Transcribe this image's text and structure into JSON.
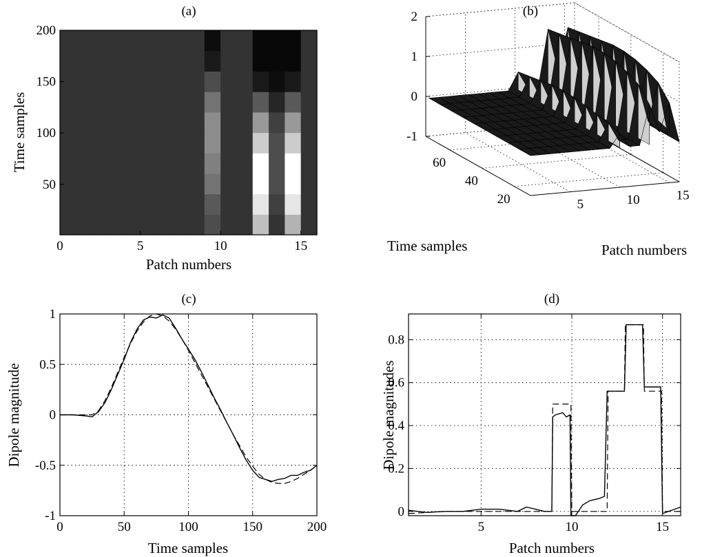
{
  "figure": {
    "background": "#ffffff",
    "ink": "#000000"
  },
  "chart_data": [
    {
      "id": "a",
      "type": "heatmap",
      "title": "(a)",
      "xlabel": "Patch numbers",
      "ylabel": "Time samples",
      "xlim": [
        0,
        16
      ],
      "ylim": [
        1,
        200
      ],
      "xticks": [
        "0",
        "5",
        "10",
        "15"
      ],
      "xtick_values": [
        0,
        5,
        10,
        15
      ],
      "yticks": [
        "50",
        "100",
        "150",
        "200"
      ],
      "ytick_values": [
        50,
        100,
        150,
        200
      ],
      "colormap": "gray",
      "x": [
        0.5,
        1.5,
        2.5,
        3.5,
        4.5,
        5.5,
        6.5,
        7.5,
        8.5,
        9.5,
        10.5,
        11.5,
        12.5,
        13.5,
        14.5,
        15.5
      ],
      "y": [
        10,
        30,
        50,
        70,
        90,
        110,
        130,
        150,
        170,
        190
      ],
      "values": [
        [
          0.2,
          0.2,
          0.2,
          0.2,
          0.2,
          0.2,
          0.2,
          0.2,
          0.2,
          0.3,
          0.2,
          0.2,
          0.75,
          0.2,
          0.7,
          0.2
        ],
        [
          0.2,
          0.2,
          0.2,
          0.2,
          0.2,
          0.2,
          0.2,
          0.2,
          0.2,
          0.35,
          0.2,
          0.2,
          0.9,
          0.25,
          0.9,
          0.2
        ],
        [
          0.2,
          0.2,
          0.2,
          0.2,
          0.2,
          0.2,
          0.2,
          0.2,
          0.2,
          0.45,
          0.2,
          0.2,
          1.0,
          0.3,
          1.0,
          0.2
        ],
        [
          0.2,
          0.2,
          0.2,
          0.2,
          0.2,
          0.2,
          0.2,
          0.2,
          0.2,
          0.5,
          0.2,
          0.2,
          1.0,
          0.3,
          1.0,
          0.2
        ],
        [
          0.2,
          0.2,
          0.2,
          0.2,
          0.2,
          0.2,
          0.2,
          0.2,
          0.2,
          0.55,
          0.2,
          0.2,
          0.8,
          0.3,
          0.8,
          0.2
        ],
        [
          0.2,
          0.2,
          0.2,
          0.2,
          0.2,
          0.2,
          0.2,
          0.2,
          0.2,
          0.55,
          0.2,
          0.2,
          0.6,
          0.25,
          0.6,
          0.2
        ],
        [
          0.2,
          0.2,
          0.2,
          0.2,
          0.2,
          0.2,
          0.2,
          0.2,
          0.2,
          0.45,
          0.2,
          0.2,
          0.35,
          0.15,
          0.35,
          0.2
        ],
        [
          0.2,
          0.2,
          0.2,
          0.2,
          0.2,
          0.2,
          0.2,
          0.2,
          0.2,
          0.3,
          0.2,
          0.2,
          0.1,
          0.05,
          0.1,
          0.2
        ],
        [
          0.2,
          0.2,
          0.2,
          0.2,
          0.2,
          0.2,
          0.2,
          0.2,
          0.2,
          0.1,
          0.2,
          0.2,
          0.03,
          0.03,
          0.03,
          0.2
        ],
        [
          0.2,
          0.2,
          0.2,
          0.2,
          0.2,
          0.2,
          0.2,
          0.2,
          0.2,
          0.05,
          0.2,
          0.2,
          0.03,
          0.03,
          0.03,
          0.2
        ]
      ]
    },
    {
      "id": "b",
      "type": "surface",
      "title": "(b)",
      "xlabel": "Time samples",
      "ylabel": "Patch numbers",
      "xticks": [
        "20",
        "40",
        "60"
      ],
      "xtick_values": [
        20,
        40,
        60
      ],
      "yticks": [
        "5",
        "10",
        "15"
      ],
      "ytick_values": [
        5,
        10,
        15
      ],
      "zticks": [
        "-1",
        "0",
        "1",
        "2"
      ],
      "ztick_values": [
        -1,
        0,
        1,
        2
      ],
      "xlim": [
        10,
        75
      ],
      "ylim": [
        1,
        16
      ],
      "zlim": [
        -1,
        2
      ],
      "grid": true,
      "patches": [
        1,
        2,
        3,
        4,
        5,
        6,
        7,
        8,
        9,
        10,
        11,
        12,
        13,
        14,
        15,
        16
      ],
      "time": [
        10,
        17,
        24,
        31,
        38,
        45,
        52,
        59,
        66,
        73
      ],
      "values": [
        [
          0,
          0,
          0,
          0,
          0,
          0,
          0,
          0,
          0,
          0.35,
          0,
          0,
          1.0,
          0.3,
          1.0,
          0
        ],
        [
          0,
          0,
          0,
          0,
          0,
          0,
          0,
          0,
          0,
          0.45,
          0,
          0,
          1.35,
          0.4,
          1.35,
          0
        ],
        [
          0,
          0,
          0,
          0,
          0,
          0,
          0,
          0,
          0,
          0.5,
          0,
          0,
          1.5,
          0.5,
          1.5,
          0
        ],
        [
          0,
          0,
          0,
          0,
          0,
          0,
          0,
          0,
          0,
          0.55,
          0,
          0,
          1.6,
          0.5,
          1.6,
          0
        ],
        [
          0,
          0,
          0,
          0,
          0,
          0,
          0,
          0,
          0,
          0.6,
          0,
          0,
          1.65,
          0.5,
          1.65,
          0
        ],
        [
          0,
          0,
          0,
          0,
          0,
          0,
          0,
          0,
          0,
          0.62,
          0,
          0,
          1.65,
          0.5,
          1.65,
          0
        ],
        [
          0,
          0,
          0,
          0,
          0,
          0,
          0,
          0,
          0,
          0.6,
          0,
          0,
          1.6,
          0.5,
          1.6,
          0
        ],
        [
          0,
          0,
          0,
          0,
          0,
          0,
          0,
          0,
          0,
          0.55,
          0,
          0,
          1.55,
          0.5,
          1.55,
          0
        ],
        [
          0,
          0,
          0,
          0,
          0,
          0,
          0,
          0,
          0,
          0.5,
          0,
          0,
          1.5,
          0.45,
          1.5,
          0
        ],
        [
          0,
          0,
          0,
          0,
          0,
          0,
          0,
          0,
          0,
          0.45,
          0,
          0,
          1.45,
          0.4,
          1.45,
          0
        ]
      ]
    },
    {
      "id": "c",
      "type": "line",
      "title": "(c)",
      "xlabel": "Time samples",
      "ylabel": "Dipole magnitude",
      "xlim": [
        0,
        200
      ],
      "ylim": [
        -1,
        1
      ],
      "xticks": [
        "0",
        "50",
        "100",
        "150",
        "200"
      ],
      "xtick_values": [
        0,
        50,
        100,
        150,
        200
      ],
      "yticks": [
        "-1",
        "-0.5",
        "0",
        "0.5",
        "1"
      ],
      "ytick_values": [
        -1,
        -0.5,
        0,
        0.5,
        1
      ],
      "grid": true,
      "series": [
        {
          "style": "solid",
          "x": [
            0,
            10,
            20,
            25,
            30,
            35,
            40,
            45,
            50,
            55,
            60,
            65,
            70,
            75,
            80,
            85,
            90,
            95,
            100,
            105,
            110,
            115,
            120,
            125,
            130,
            135,
            140,
            145,
            150,
            155,
            160,
            165,
            170,
            175,
            180,
            185,
            190,
            195,
            200
          ],
          "y": [
            0,
            0,
            -0.01,
            -0.02,
            0.03,
            0.12,
            0.25,
            0.4,
            0.55,
            0.72,
            0.85,
            0.94,
            0.97,
            0.96,
            0.99,
            0.96,
            0.86,
            0.75,
            0.65,
            0.55,
            0.43,
            0.3,
            0.17,
            0.05,
            -0.08,
            -0.2,
            -0.33,
            -0.45,
            -0.55,
            -0.62,
            -0.64,
            -0.66,
            -0.64,
            -0.63,
            -0.6,
            -0.6,
            -0.57,
            -0.55,
            -0.5
          ]
        },
        {
          "style": "dashed",
          "x": [
            0,
            20,
            25,
            30,
            35,
            40,
            45,
            50,
            55,
            60,
            65,
            70,
            75,
            80,
            85,
            90,
            95,
            100,
            105,
            110,
            115,
            120,
            125,
            130,
            135,
            140,
            145,
            150,
            155,
            160,
            165,
            170,
            175,
            180,
            185,
            190,
            195,
            200
          ],
          "y": [
            0,
            0,
            0,
            0.04,
            0.14,
            0.27,
            0.42,
            0.57,
            0.71,
            0.83,
            0.92,
            0.98,
            1.0,
            0.98,
            0.93,
            0.85,
            0.75,
            0.64,
            0.52,
            0.4,
            0.28,
            0.16,
            0.04,
            -0.08,
            -0.2,
            -0.31,
            -0.42,
            -0.51,
            -0.59,
            -0.64,
            -0.67,
            -0.68,
            -0.68,
            -0.66,
            -0.63,
            -0.59,
            -0.55,
            -0.5
          ]
        }
      ]
    },
    {
      "id": "d",
      "type": "line",
      "title": "(d)",
      "xlabel": "Patch numbers",
      "ylabel": "Dipole magnitudes",
      "xlim": [
        1,
        16
      ],
      "ylim": [
        -0.02,
        0.92
      ],
      "xticks": [
        "5",
        "10",
        "15"
      ],
      "xtick_values": [
        5,
        10,
        15
      ],
      "yticks": [
        "0",
        "0.2",
        "0.4",
        "0.6",
        "0.8"
      ],
      "ytick_values": [
        0,
        0.2,
        0.4,
        0.6,
        0.8
      ],
      "grid": true,
      "series": [
        {
          "style": "solid",
          "x": [
            1,
            2,
            3,
            4,
            5,
            6,
            7,
            7.5,
            8,
            8.5,
            8.9,
            8.95,
            9.1,
            9.5,
            9.7,
            9.9,
            9.95,
            10.2,
            10.6,
            11,
            11.5,
            11.8,
            11.95,
            12.1,
            12.5,
            12.9,
            13.0,
            13.5,
            13.9,
            14.0,
            14.3,
            14.9,
            15.0,
            16
          ],
          "y": [
            0.005,
            -0.005,
            0.0,
            0.0,
            0.01,
            0.01,
            0.0,
            0.02,
            0.01,
            0.0,
            0.0,
            0.44,
            0.45,
            0.46,
            0.44,
            0.45,
            -0.02,
            -0.02,
            0.03,
            0.05,
            0.06,
            0.07,
            0.56,
            0.56,
            0.56,
            0.56,
            0.87,
            0.87,
            0.87,
            0.58,
            0.58,
            0.58,
            -0.01,
            0.02
          ]
        },
        {
          "style": "dashed",
          "x": [
            1,
            3,
            5,
            8.9,
            8.95,
            9.95,
            10.0,
            11.95,
            12.0,
            12.9,
            12.95,
            13.95,
            14.0,
            14.95,
            15.0,
            16
          ],
          "y": [
            -0.01,
            0.0,
            0.0,
            0.0,
            0.5,
            0.5,
            0.0,
            0.0,
            0.56,
            0.56,
            0.87,
            0.87,
            0.56,
            0.56,
            0.0,
            0.0
          ]
        }
      ]
    }
  ]
}
